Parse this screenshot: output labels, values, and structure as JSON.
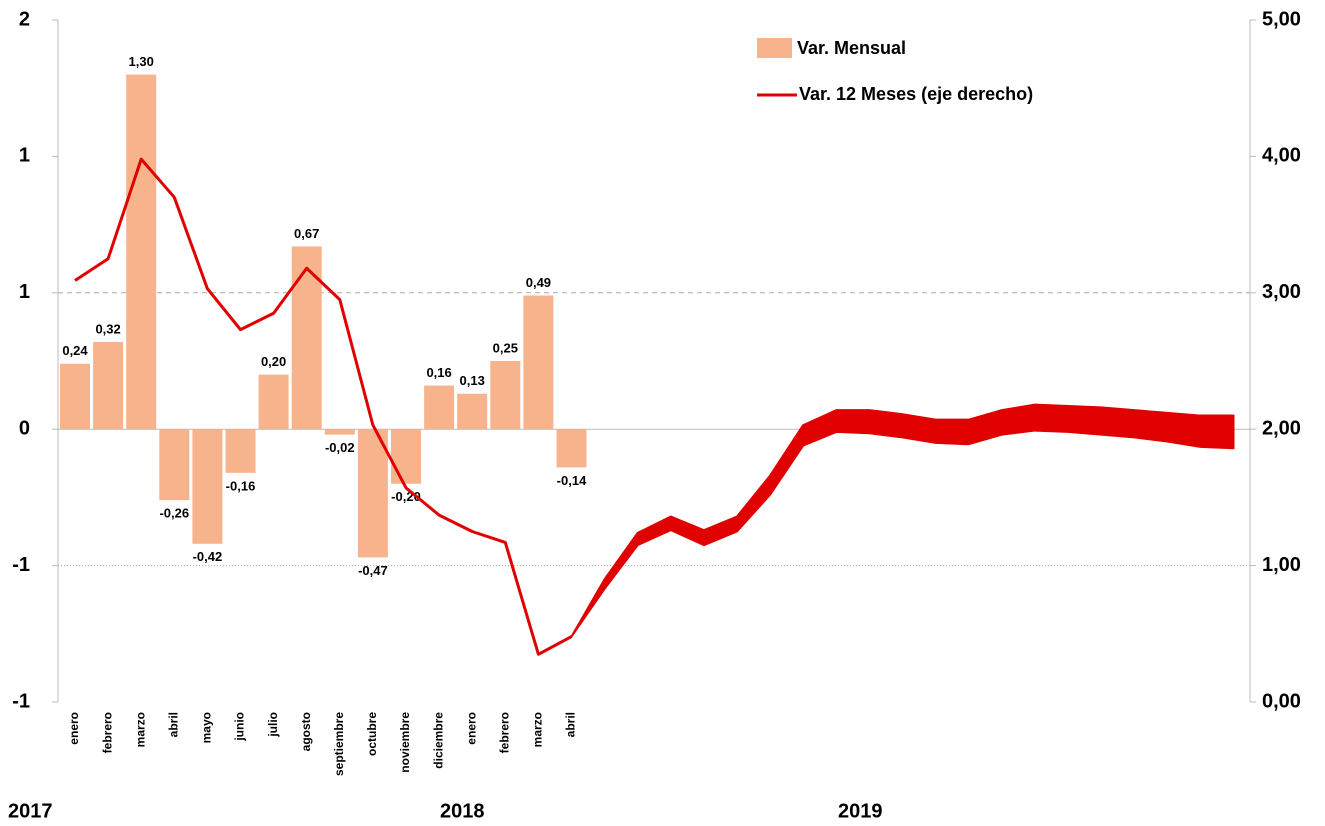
{
  "chart_data": {
    "type": "bar-line",
    "categories": [
      "enero",
      "febrero",
      "marzo",
      "abril",
      "mayo",
      "junio",
      "julio",
      "agosto",
      "septiembre",
      "octubre",
      "noviembre",
      "diciembre",
      "enero",
      "febrero",
      "marzo",
      "abril",
      null,
      null,
      null,
      null,
      null,
      null,
      null,
      null,
      null,
      null,
      null,
      null,
      null,
      null,
      null,
      null,
      null,
      null,
      null,
      null
    ],
    "year_labels": [
      "2017",
      "2018",
      "2019"
    ],
    "series": [
      {
        "name": "Var. Mensual",
        "color": "#f7b48c",
        "values": [
          0.24,
          0.32,
          1.3,
          -0.26,
          -0.42,
          -0.16,
          0.2,
          0.67,
          -0.02,
          -0.47,
          -0.2,
          0.16,
          0.13,
          0.25,
          0.49,
          -0.14,
          null,
          null,
          null,
          null,
          null,
          null,
          null,
          null,
          null,
          null,
          null,
          null,
          null,
          null,
          null,
          null,
          null,
          null,
          null,
          null
        ],
        "value_labels": [
          "0,24",
          "0,32",
          "1,30",
          "-0,26",
          "-0,42",
          "-0,16",
          "0,20",
          "0,67",
          "-0,02",
          "-0,47",
          "-0,20",
          "0,16",
          "0,13",
          "0,25",
          "0,49",
          "-0,14",
          null,
          null,
          null,
          null,
          null,
          null,
          null,
          null,
          null,
          null,
          null,
          null,
          null,
          null,
          null,
          null,
          null,
          null,
          null,
          null
        ]
      },
      {
        "name": "Var. 12 Meses (eje derecho)",
        "color": "#e00000",
        "axis": "y2",
        "values": [
          3.09,
          3.25,
          3.98,
          3.7,
          3.03,
          2.73,
          2.85,
          3.18,
          2.95,
          2.03,
          1.57,
          1.37,
          1.25,
          1.17,
          0.35,
          0.48,
          null,
          null,
          null,
          null,
          null,
          null,
          null,
          null,
          null,
          null,
          null,
          null,
          null,
          null,
          null,
          null,
          null,
          null,
          null,
          null
        ]
      }
    ],
    "band": {
      "color": "#e00000",
      "axis": "y2",
      "upper": [
        null,
        null,
        null,
        null,
        null,
        null,
        null,
        null,
        null,
        null,
        null,
        null,
        null,
        null,
        null,
        0.48,
        0.9,
        1.24,
        1.36,
        1.26,
        1.36,
        1.66,
        2.03,
        2.14,
        2.14,
        2.11,
        2.07,
        2.07,
        2.14,
        2.18,
        2.17,
        2.16,
        2.14,
        2.12,
        2.1,
        2.1
      ],
      "lower": [
        null,
        null,
        null,
        null,
        null,
        null,
        null,
        null,
        null,
        null,
        null,
        null,
        null,
        null,
        null,
        0.48,
        0.83,
        1.15,
        1.26,
        1.15,
        1.25,
        1.52,
        1.88,
        1.98,
        1.97,
        1.94,
        1.9,
        1.89,
        1.96,
        1.99,
        1.98,
        1.96,
        1.94,
        1.91,
        1.87,
        1.86
      ]
    },
    "ylim": [
      -1,
      1.5
    ],
    "yticks": [
      {
        "value": -1,
        "label": "-1"
      },
      {
        "value": -0.5,
        "label": "-1"
      },
      0,
      {
        "value": 0.5,
        "label": "1"
      },
      1,
      {
        "value": 1.5,
        "label": "2"
      }
    ],
    "y2lim": [
      0,
      5
    ],
    "y2ticks": [
      {
        "value": 0,
        "label": "0,00"
      },
      {
        "value": 1,
        "label": "1,00"
      },
      {
        "value": 2,
        "label": "2,00"
      },
      {
        "value": 3,
        "label": "3,00"
      },
      {
        "value": 4,
        "label": "4,00"
      },
      {
        "value": 5,
        "label": "5,00"
      }
    ],
    "legend": "top-right"
  }
}
